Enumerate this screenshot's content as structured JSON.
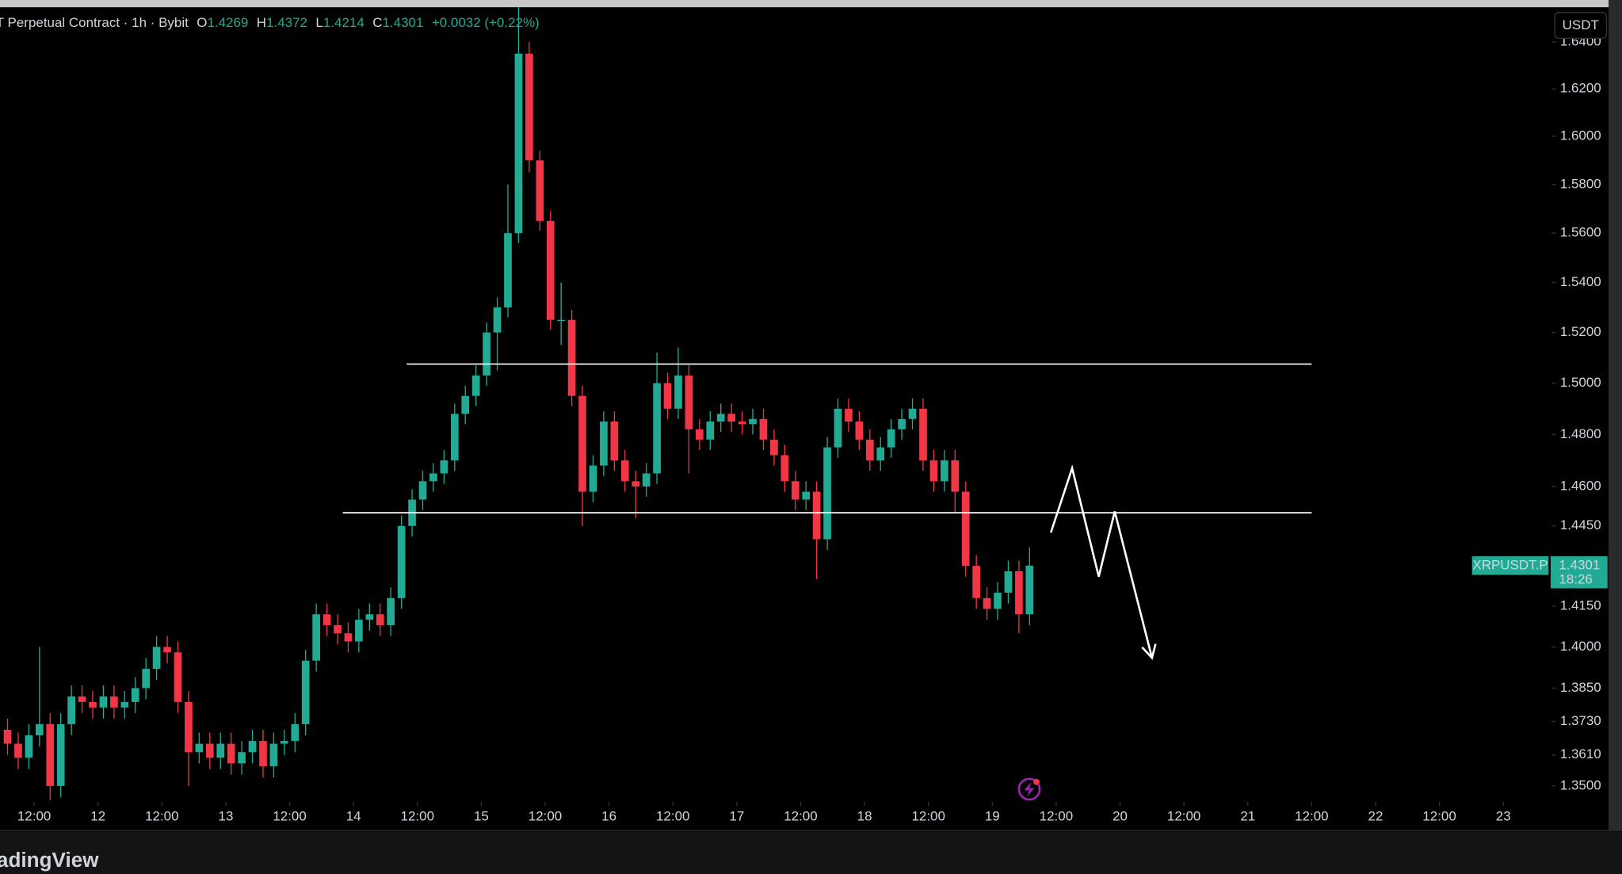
{
  "chart_data": {
    "type": "candlestick",
    "title": "T Perpetual Contract · 1h · Bybit",
    "ohlc": [
      {
        "label": "O",
        "value": 1.4269
      },
      {
        "label": "H",
        "value": 1.4372
      },
      {
        "label": "L",
        "value": 1.4214
      },
      {
        "label": "C",
        "value": 1.4301
      }
    ],
    "change": "+0.0032 (+0.22%)",
    "currency": "USDT",
    "symbol": "XRPUSDT.P",
    "countdown": "18:26",
    "brand": "TradingView",
    "log_scale": true,
    "grid": false,
    "up_color": "#22ab94",
    "down_color": "#f23645",
    "xlim": [
      "11 05:35",
      "23 09:05"
    ],
    "ylim": [
      1.3445,
      1.6545
    ],
    "yticks": [
      {
        "value": 1.64,
        "label": "1.6400"
      },
      {
        "value": 1.62,
        "label": "1.6200"
      },
      {
        "value": 1.6,
        "label": "1.6000"
      },
      {
        "value": 1.58,
        "label": "1.5800"
      },
      {
        "value": 1.56,
        "label": "1.5600"
      },
      {
        "value": 1.54,
        "label": "1.5400"
      },
      {
        "value": 1.52,
        "label": "1.5200"
      },
      {
        "value": 1.5,
        "label": "1.5000"
      },
      {
        "value": 1.48,
        "label": "1.4800"
      },
      {
        "value": 1.46,
        "label": "1.4600"
      },
      {
        "value": 1.445,
        "label": "1.4450"
      },
      {
        "value": 1.415,
        "label": "1.4150"
      },
      {
        "value": 1.4,
        "label": "1.4000"
      },
      {
        "value": 1.385,
        "label": "1.3850"
      },
      {
        "value": 1.373,
        "label": "1.3730"
      },
      {
        "value": 1.361,
        "label": "1.3610"
      },
      {
        "value": 1.35,
        "label": "1.3500"
      }
    ],
    "xticks": [
      {
        "value": "11 12:00",
        "label": "12:00"
      },
      {
        "value": "12 00:00",
        "label": "12"
      },
      {
        "value": "12 12:00",
        "label": "12:00"
      },
      {
        "value": "13 00:00",
        "label": "13"
      },
      {
        "value": "13 12:00",
        "label": "12:00"
      },
      {
        "value": "14 00:00",
        "label": "14"
      },
      {
        "value": "14 12:00",
        "label": "12:00"
      },
      {
        "value": "15 00:00",
        "label": "15"
      },
      {
        "value": "15 12:00",
        "label": "12:00"
      },
      {
        "value": "16 00:00",
        "label": "16"
      },
      {
        "value": "16 12:00",
        "label": "12:00"
      },
      {
        "value": "17 00:00",
        "label": "17"
      },
      {
        "value": "17 12:00",
        "label": "12:00"
      },
      {
        "value": "18 00:00",
        "label": "18"
      },
      {
        "value": "18 12:00",
        "label": "12:00"
      },
      {
        "value": "19 00:00",
        "label": "19"
      },
      {
        "value": "19 12:00",
        "label": "12:00"
      },
      {
        "value": "20 00:00",
        "label": "20"
      },
      {
        "value": "20 12:00",
        "label": "12:00"
      },
      {
        "value": "21 00:00",
        "label": "21"
      },
      {
        "value": "21 12:00",
        "label": "12:00"
      },
      {
        "value": "22 00:00",
        "label": "22"
      },
      {
        "value": "22 12:00",
        "label": "12:00"
      },
      {
        "value": "23 00:00",
        "label": "23"
      }
    ],
    "x": [
      "11 07:00",
      "11 09:00",
      "11 11:00",
      "11 13:00",
      "11 15:00",
      "11 17:00",
      "11 19:00",
      "11 21:00",
      "11 23:00",
      "12 01:00",
      "12 03:00",
      "12 05:00",
      "12 07:00",
      "12 09:00",
      "12 11:00",
      "12 13:00",
      "12 15:00",
      "12 17:00",
      "12 19:00",
      "12 21:00",
      "12 23:00",
      "13 01:00",
      "13 03:00",
      "13 05:00",
      "13 07:00",
      "13 09:00",
      "13 11:00",
      "13 13:00",
      "13 15:00",
      "13 17:00",
      "13 19:00",
      "13 21:00",
      "13 23:00",
      "14 01:00",
      "14 03:00",
      "14 05:00",
      "14 07:00",
      "14 09:00",
      "14 11:00",
      "14 13:00",
      "14 15:00",
      "14 17:00",
      "14 19:00",
      "14 21:00",
      "14 23:00",
      "15 01:00",
      "15 03:00",
      "15 05:00",
      "15 07:00",
      "15 09:00",
      "15 11:00",
      "15 13:00",
      "15 15:00",
      "15 17:00",
      "15 19:00",
      "15 21:00",
      "15 23:00",
      "16 01:00",
      "16 03:00",
      "16 05:00",
      "16 07:00",
      "16 09:00",
      "16 11:00",
      "16 13:00",
      "16 15:00",
      "16 17:00",
      "16 19:00",
      "16 21:00",
      "16 23:00",
      "17 01:00",
      "17 03:00",
      "17 05:00",
      "17 07:00",
      "17 09:00",
      "17 11:00",
      "17 13:00",
      "17 15:00",
      "17 17:00",
      "17 19:00",
      "17 21:00",
      "17 23:00",
      "18 01:00",
      "18 03:00",
      "18 05:00",
      "18 07:00",
      "18 09:00",
      "18 11:00",
      "18 13:00",
      "18 15:00",
      "18 17:00",
      "18 19:00",
      "18 21:00",
      "18 23:00",
      "19 01:00",
      "19 03:00",
      "19 05:00",
      "19 07:00"
    ],
    "open": [
      1.37,
      1.365,
      1.36,
      1.368,
      1.372,
      1.35,
      1.372,
      1.382,
      1.38,
      1.378,
      1.382,
      1.378,
      1.38,
      1.385,
      1.392,
      1.4,
      1.398,
      1.38,
      1.362,
      1.365,
      1.36,
      1.365,
      1.358,
      1.362,
      1.366,
      1.357,
      1.365,
      1.366,
      1.372,
      1.395,
      1.412,
      1.408,
      1.405,
      1.402,
      1.41,
      1.412,
      1.408,
      1.418,
      1.445,
      1.455,
      1.462,
      1.465,
      1.47,
      1.488,
      1.495,
      1.503,
      1.52,
      1.53,
      1.56,
      1.635,
      1.59,
      1.565,
      1.525,
      1.525,
      1.495,
      1.458,
      1.468,
      1.485,
      1.47,
      1.462,
      1.46,
      1.465,
      1.5,
      1.49,
      1.503,
      1.482,
      1.478,
      1.485,
      1.488,
      1.485,
      1.484,
      1.486,
      1.478,
      1.472,
      1.462,
      1.455,
      1.458,
      1.44,
      1.475,
      1.49,
      1.485,
      1.478,
      1.47,
      1.475,
      1.482,
      1.486,
      1.49,
      1.47,
      1.462,
      1.47,
      1.458,
      1.43,
      1.418,
      1.414,
      1.42,
      1.428,
      1.412
    ],
    "high": [
      1.374,
      1.369,
      1.372,
      1.4,
      1.376,
      1.376,
      1.386,
      1.386,
      1.384,
      1.386,
      1.386,
      1.384,
      1.389,
      1.396,
      1.404,
      1.404,
      1.402,
      1.384,
      1.369,
      1.369,
      1.369,
      1.369,
      1.366,
      1.37,
      1.37,
      1.369,
      1.37,
      1.376,
      1.399,
      1.416,
      1.416,
      1.412,
      1.409,
      1.414,
      1.416,
      1.416,
      1.422,
      1.449,
      1.459,
      1.466,
      1.469,
      1.474,
      1.492,
      1.499,
      1.507,
      1.524,
      1.534,
      1.58,
      1.655,
      1.64,
      1.594,
      1.569,
      1.54,
      1.529,
      1.499,
      1.472,
      1.489,
      1.489,
      1.474,
      1.466,
      1.469,
      1.512,
      1.504,
      1.514,
      1.507,
      1.486,
      1.489,
      1.492,
      1.492,
      1.489,
      1.49,
      1.49,
      1.482,
      1.476,
      1.466,
      1.462,
      1.462,
      1.479,
      1.494,
      1.494,
      1.489,
      1.482,
      1.479,
      1.486,
      1.49,
      1.494,
      1.494,
      1.474,
      1.474,
      1.474,
      1.462,
      1.434,
      1.422,
      1.424,
      1.432,
      1.432,
      1.437
    ],
    "low": [
      1.361,
      1.356,
      1.356,
      1.364,
      1.345,
      1.346,
      1.368,
      1.376,
      1.374,
      1.374,
      1.374,
      1.374,
      1.376,
      1.381,
      1.388,
      1.394,
      1.376,
      1.35,
      1.358,
      1.356,
      1.356,
      1.354,
      1.354,
      1.358,
      1.353,
      1.353,
      1.361,
      1.362,
      1.368,
      1.391,
      1.404,
      1.401,
      1.398,
      1.398,
      1.406,
      1.404,
      1.404,
      1.414,
      1.441,
      1.451,
      1.458,
      1.461,
      1.466,
      1.484,
      1.491,
      1.499,
      1.505,
      1.526,
      1.556,
      1.585,
      1.561,
      1.521,
      1.515,
      1.491,
      1.445,
      1.454,
      1.464,
      1.466,
      1.458,
      1.448,
      1.456,
      1.461,
      1.486,
      1.486,
      1.465,
      1.474,
      1.474,
      1.481,
      1.481,
      1.48,
      1.48,
      1.474,
      1.468,
      1.458,
      1.451,
      1.451,
      1.425,
      1.436,
      1.471,
      1.481,
      1.474,
      1.466,
      1.466,
      1.471,
      1.478,
      1.482,
      1.466,
      1.458,
      1.458,
      1.45,
      1.426,
      1.414,
      1.41,
      1.41,
      1.416,
      1.405,
      1.408
    ],
    "close": [
      1.365,
      1.36,
      1.368,
      1.372,
      1.35,
      1.372,
      1.382,
      1.38,
      1.378,
      1.382,
      1.378,
      1.38,
      1.385,
      1.392,
      1.4,
      1.398,
      1.38,
      1.362,
      1.365,
      1.36,
      1.365,
      1.358,
      1.362,
      1.366,
      1.357,
      1.365,
      1.366,
      1.372,
      1.395,
      1.412,
      1.408,
      1.405,
      1.402,
      1.41,
      1.412,
      1.408,
      1.418,
      1.445,
      1.455,
      1.462,
      1.465,
      1.47,
      1.488,
      1.495,
      1.503,
      1.52,
      1.53,
      1.56,
      1.635,
      1.59,
      1.565,
      1.525,
      1.525,
      1.495,
      1.458,
      1.468,
      1.485,
      1.47,
      1.462,
      1.46,
      1.465,
      1.5,
      1.49,
      1.503,
      1.482,
      1.478,
      1.485,
      1.488,
      1.485,
      1.484,
      1.486,
      1.478,
      1.472,
      1.462,
      1.455,
      1.458,
      1.44,
      1.475,
      1.49,
      1.485,
      1.478,
      1.47,
      1.475,
      1.482,
      1.486,
      1.49,
      1.47,
      1.462,
      1.47,
      1.458,
      1.43,
      1.418,
      1.414,
      1.42,
      1.428,
      1.412,
      1.4301
    ],
    "levels": [
      {
        "price": 1.5075,
        "from": "14 10:00",
        "to": "21 12:00"
      },
      {
        "price": 1.45,
        "from": "13 22:00",
        "to": "21 12:00"
      }
    ],
    "projection": {
      "x": [
        "19 11:00",
        "19 15:00",
        "19 20:00",
        "19 23:00",
        "20 06:00"
      ],
      "y": [
        1.4425,
        1.467,
        1.426,
        1.4505,
        1.396
      ]
    }
  }
}
